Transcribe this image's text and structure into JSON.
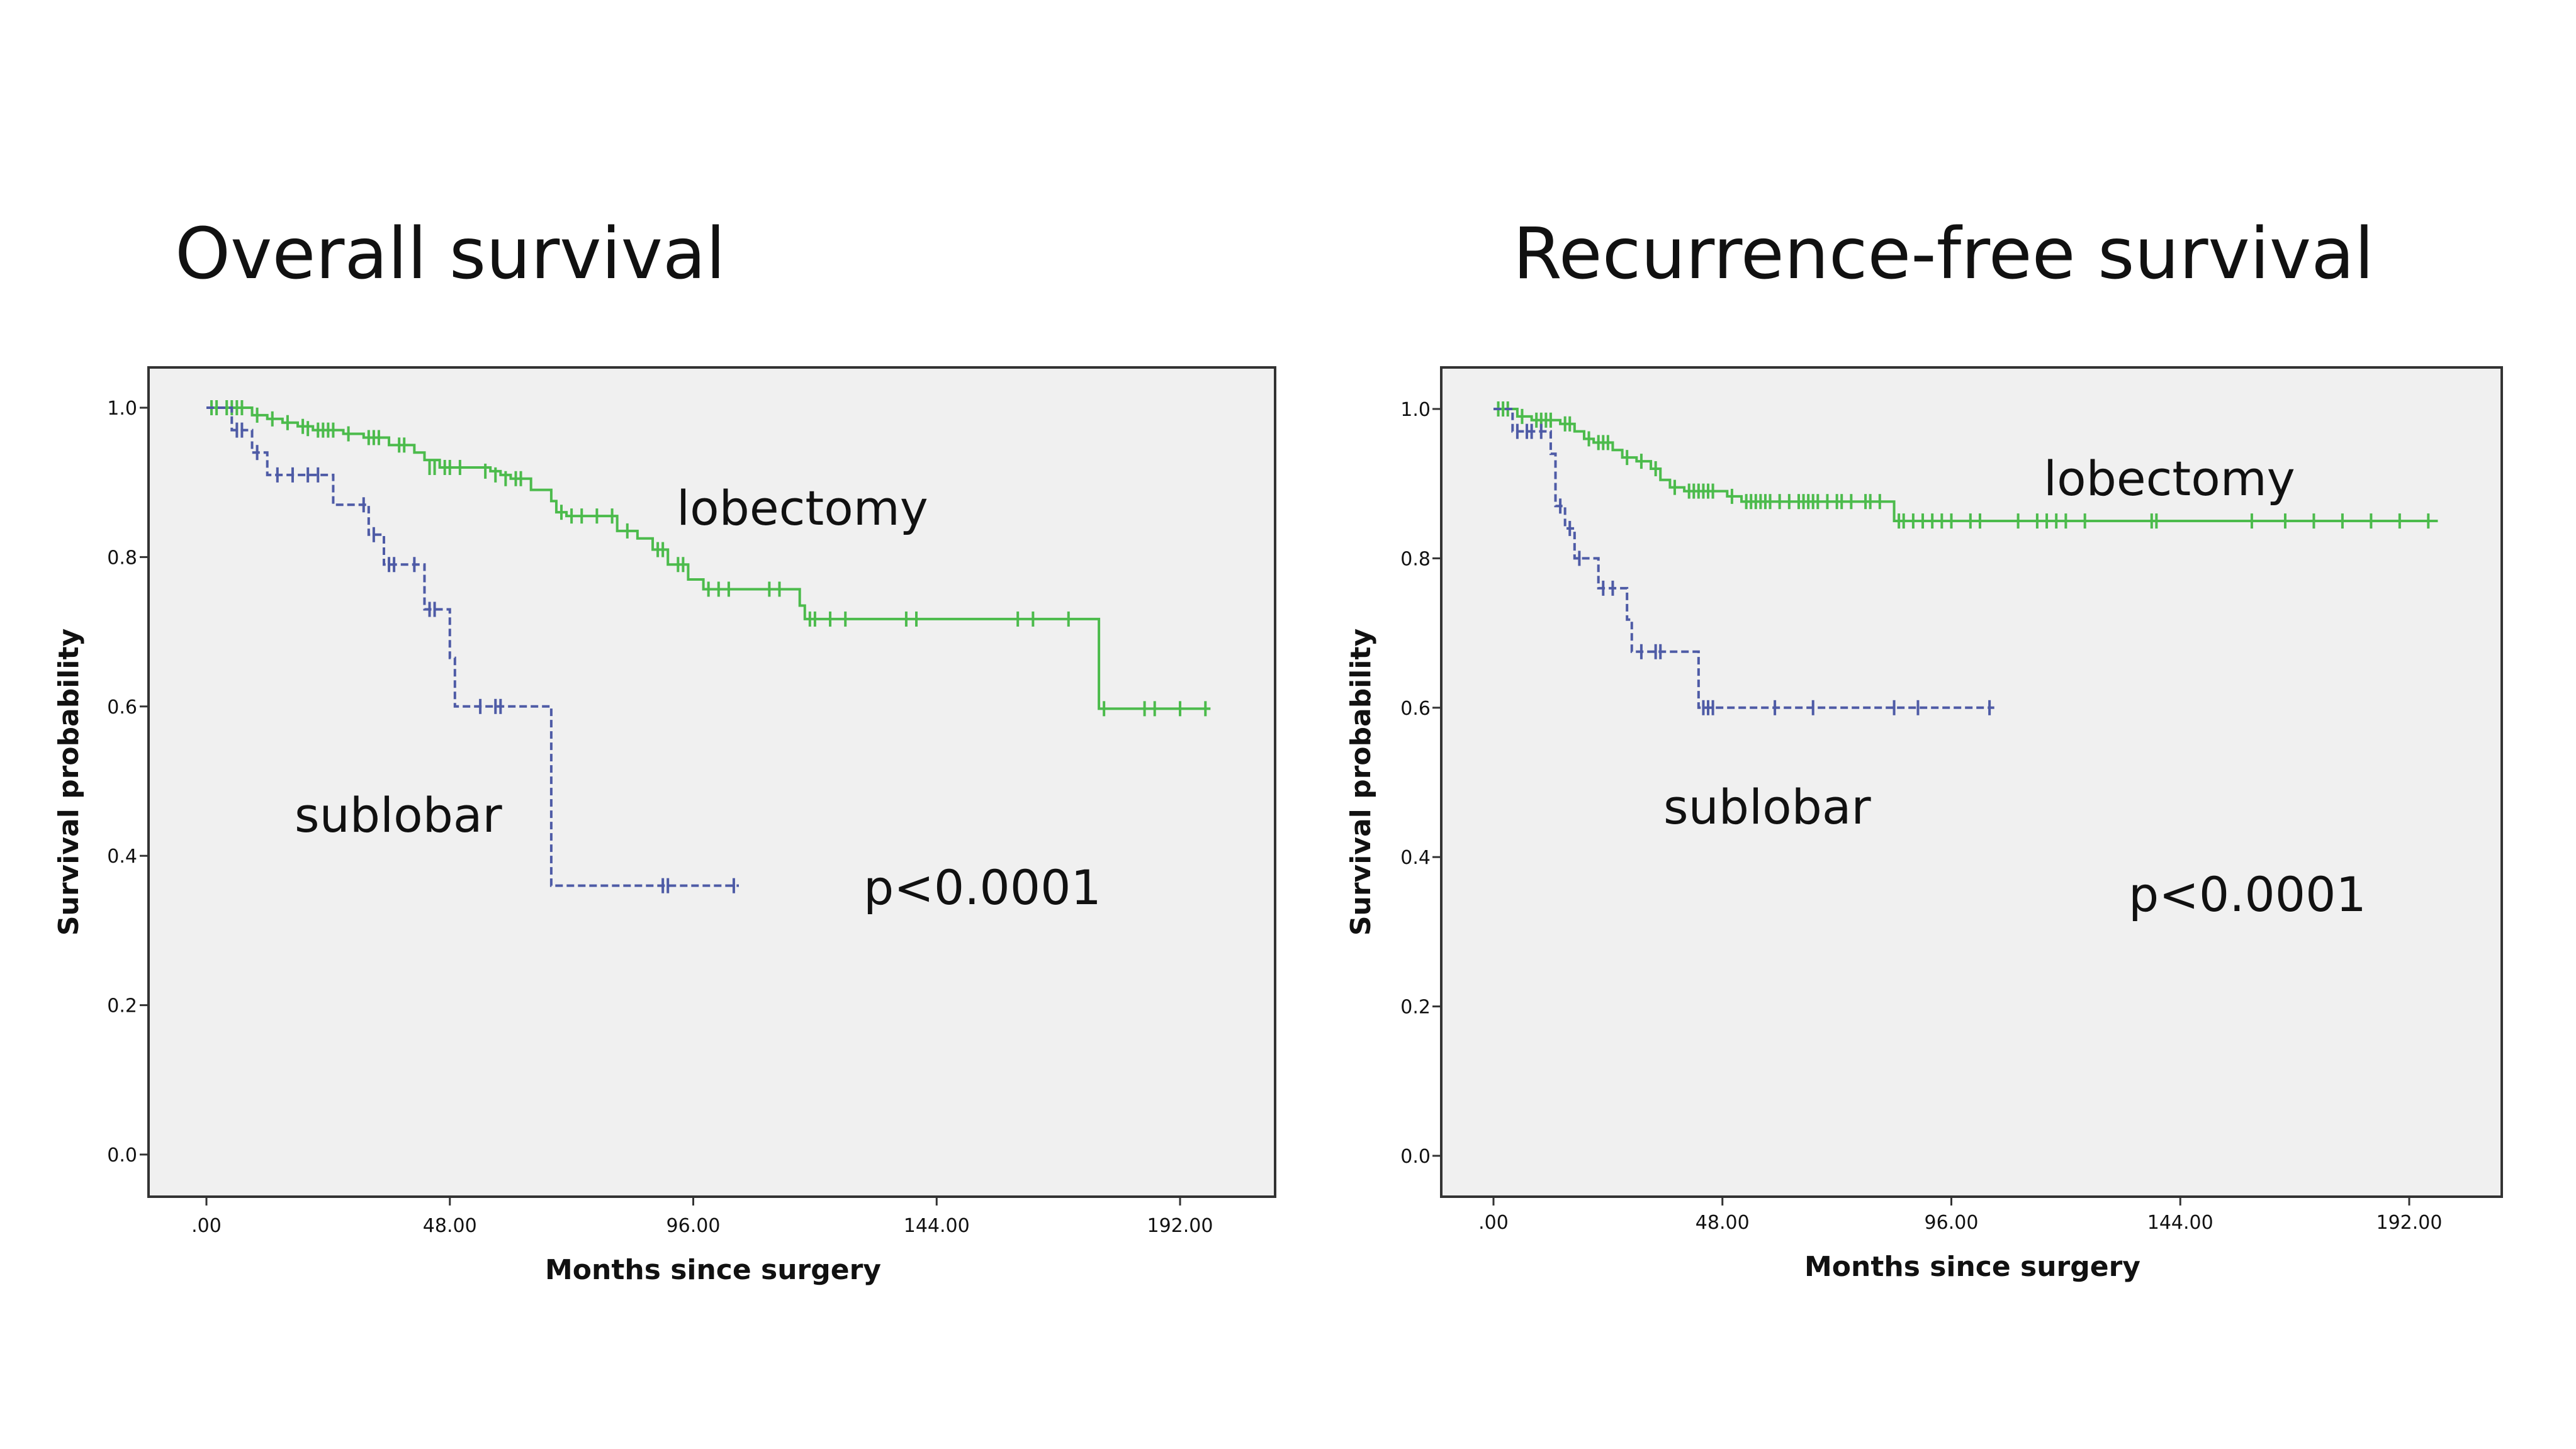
{
  "chart_data": [
    {
      "type": "line",
      "subtype": "kaplan-meier",
      "title": "Overall survival",
      "xlabel": "Months since surgery",
      "ylabel": "Survival probability",
      "xlim": [
        0,
        198
      ],
      "ylim": [
        0,
        1.0
      ],
      "xticks": [
        0,
        48,
        96,
        144,
        192
      ],
      "xtick_labels": [
        ".00",
        "48.00",
        "96.00",
        "144.00",
        "192.00"
      ],
      "yticks": [
        0,
        0.2,
        0.4,
        0.6,
        0.8,
        1.0
      ],
      "ytick_labels": [
        "0.0",
        "0.2",
        "0.4",
        "0.6",
        "0.8",
        "1.0"
      ],
      "background": "#f0f0f0",
      "grid": false,
      "pvalue": "p<0.0001",
      "series": [
        {
          "label": "lobectomy",
          "color": "#4cbb4c",
          "dashed": false,
          "steps": [
            [
              0,
              1.0
            ],
            [
              9,
              0.99
            ],
            [
              12,
              0.985
            ],
            [
              15,
              0.98
            ],
            [
              18,
              0.975
            ],
            [
              21,
              0.97
            ],
            [
              27,
              0.965
            ],
            [
              31,
              0.96
            ],
            [
              36,
              0.95
            ],
            [
              41,
              0.94
            ],
            [
              43,
              0.93
            ],
            [
              46,
              0.92
            ],
            [
              56,
              0.915
            ],
            [
              58,
              0.91
            ],
            [
              60,
              0.905
            ],
            [
              64,
              0.89
            ],
            [
              68,
              0.875
            ],
            [
              69,
              0.86
            ],
            [
              71,
              0.855
            ],
            [
              81,
              0.835
            ],
            [
              85,
              0.825
            ],
            [
              88,
              0.81
            ],
            [
              91,
              0.79
            ],
            [
              95,
              0.77
            ],
            [
              98,
              0.757
            ],
            [
              117,
              0.735
            ],
            [
              118,
              0.717
            ],
            [
              176,
              0.597
            ],
            [
              198,
              0.597
            ]
          ],
          "censored": [
            [
              1,
              1.0
            ],
            [
              2,
              1.0
            ],
            [
              4,
              1.0
            ],
            [
              5,
              1.0
            ],
            [
              6,
              1.0
            ],
            [
              7,
              1.0
            ],
            [
              10,
              0.99
            ],
            [
              13,
              0.985
            ],
            [
              16,
              0.98
            ],
            [
              19,
              0.975
            ],
            [
              20,
              0.972
            ],
            [
              22,
              0.97
            ],
            [
              23,
              0.97
            ],
            [
              24,
              0.97
            ],
            [
              25,
              0.97
            ],
            [
              28,
              0.965
            ],
            [
              32,
              0.96
            ],
            [
              33,
              0.96
            ],
            [
              34,
              0.96
            ],
            [
              38,
              0.95
            ],
            [
              39,
              0.95
            ],
            [
              44,
              0.92
            ],
            [
              45,
              0.92
            ],
            [
              47,
              0.92
            ],
            [
              48,
              0.92
            ],
            [
              50,
              0.92
            ],
            [
              55,
              0.915
            ],
            [
              57,
              0.91
            ],
            [
              59,
              0.905
            ],
            [
              61,
              0.905
            ],
            [
              62,
              0.905
            ],
            [
              70,
              0.86
            ],
            [
              72,
              0.855
            ],
            [
              74,
              0.855
            ],
            [
              77,
              0.855
            ],
            [
              80,
              0.855
            ],
            [
              83,
              0.835
            ],
            [
              89,
              0.81
            ],
            [
              90,
              0.81
            ],
            [
              93,
              0.79
            ],
            [
              94,
              0.79
            ],
            [
              99,
              0.757
            ],
            [
              101,
              0.757
            ],
            [
              103,
              0.757
            ],
            [
              111,
              0.757
            ],
            [
              113,
              0.757
            ],
            [
              119,
              0.717
            ],
            [
              120,
              0.717
            ],
            [
              123,
              0.717
            ],
            [
              126,
              0.717
            ],
            [
              138,
              0.717
            ],
            [
              140,
              0.717
            ],
            [
              160,
              0.717
            ],
            [
              163,
              0.717
            ],
            [
              170,
              0.717
            ],
            [
              177,
              0.597
            ],
            [
              185,
              0.597
            ],
            [
              187,
              0.597
            ],
            [
              192,
              0.597
            ],
            [
              197,
              0.597
            ]
          ]
        },
        {
          "label": "sublobar",
          "color": "#4e5ba6",
          "dashed": true,
          "steps": [
            [
              0,
              1.0
            ],
            [
              5,
              0.97
            ],
            [
              9,
              0.94
            ],
            [
              12,
              0.91
            ],
            [
              25,
              0.87
            ],
            [
              32,
              0.83
            ],
            [
              35,
              0.79
            ],
            [
              43,
              0.73
            ],
            [
              48,
              0.665
            ],
            [
              49,
              0.6
            ],
            [
              68,
              0.36
            ],
            [
              105,
              0.36
            ]
          ],
          "censored": [
            [
              6,
              0.97
            ],
            [
              7,
              0.97
            ],
            [
              10,
              0.94
            ],
            [
              14,
              0.91
            ],
            [
              17,
              0.91
            ],
            [
              20,
              0.91
            ],
            [
              22,
              0.91
            ],
            [
              31,
              0.87
            ],
            [
              33,
              0.83
            ],
            [
              36,
              0.79
            ],
            [
              37,
              0.79
            ],
            [
              41,
              0.79
            ],
            [
              44,
              0.73
            ],
            [
              45,
              0.73
            ],
            [
              54,
              0.6
            ],
            [
              57,
              0.6
            ],
            [
              58,
              0.6
            ],
            [
              90,
              0.36
            ],
            [
              91,
              0.36
            ],
            [
              104,
              0.36
            ]
          ]
        }
      ]
    },
    {
      "type": "line",
      "subtype": "kaplan-meier",
      "title": "Recurrence-free survival",
      "xlabel": "Months since surgery",
      "ylabel": "Survival probability",
      "xlim": [
        0,
        198
      ],
      "ylim": [
        0,
        1.0
      ],
      "xticks": [
        0,
        48,
        96,
        144,
        192
      ],
      "xtick_labels": [
        ".00",
        "48.00",
        "96.00",
        "144.00",
        "192.00"
      ],
      "yticks": [
        0,
        0.2,
        0.4,
        0.6,
        0.8,
        1.0
      ],
      "ytick_labels": [
        "0.0",
        "0.2",
        "0.4",
        "0.6",
        "0.8",
        "1.0"
      ],
      "background": "#f0f0f0",
      "grid": false,
      "pvalue": "p<0.0001",
      "series": [
        {
          "label": "lobectomy",
          "color": "#4cbb4c",
          "dashed": false,
          "steps": [
            [
              0,
              1.0
            ],
            [
              5,
              0.99
            ],
            [
              8,
              0.985
            ],
            [
              14,
              0.98
            ],
            [
              17,
              0.97
            ],
            [
              19,
              0.96
            ],
            [
              21,
              0.955
            ],
            [
              25,
              0.945
            ],
            [
              27,
              0.935
            ],
            [
              30,
              0.93
            ],
            [
              33,
              0.92
            ],
            [
              35,
              0.905
            ],
            [
              37,
              0.895
            ],
            [
              40,
              0.89
            ],
            [
              49,
              0.883
            ],
            [
              52,
              0.876
            ],
            [
              84,
              0.85
            ],
            [
              198,
              0.85
            ]
          ],
          "censored": [
            [
              1,
              1.0
            ],
            [
              2,
              1.0
            ],
            [
              3,
              1.0
            ],
            [
              6,
              0.99
            ],
            [
              9,
              0.985
            ],
            [
              10,
              0.985
            ],
            [
              11,
              0.985
            ],
            [
              12,
              0.985
            ],
            [
              15,
              0.98
            ],
            [
              16,
              0.98
            ],
            [
              20,
              0.96
            ],
            [
              22,
              0.955
            ],
            [
              23,
              0.955
            ],
            [
              24,
              0.955
            ],
            [
              28,
              0.935
            ],
            [
              31,
              0.93
            ],
            [
              34,
              0.92
            ],
            [
              38,
              0.895
            ],
            [
              41,
              0.89
            ],
            [
              42,
              0.89
            ],
            [
              43,
              0.89
            ],
            [
              44,
              0.89
            ],
            [
              45,
              0.89
            ],
            [
              46,
              0.89
            ],
            [
              50,
              0.883
            ],
            [
              53,
              0.876
            ],
            [
              54,
              0.876
            ],
            [
              55,
              0.876
            ],
            [
              56,
              0.876
            ],
            [
              57,
              0.876
            ],
            [
              58,
              0.876
            ],
            [
              60,
              0.876
            ],
            [
              62,
              0.876
            ],
            [
              64,
              0.876
            ],
            [
              65,
              0.876
            ],
            [
              66,
              0.876
            ],
            [
              67,
              0.876
            ],
            [
              68,
              0.876
            ],
            [
              70,
              0.876
            ],
            [
              72,
              0.876
            ],
            [
              73,
              0.876
            ],
            [
              75,
              0.876
            ],
            [
              78,
              0.876
            ],
            [
              79,
              0.876
            ],
            [
              81,
              0.876
            ],
            [
              85,
              0.85
            ],
            [
              86,
              0.85
            ],
            [
              88,
              0.85
            ],
            [
              90,
              0.85
            ],
            [
              92,
              0.85
            ],
            [
              94,
              0.85
            ],
            [
              96,
              0.85
            ],
            [
              100,
              0.85
            ],
            [
              102,
              0.85
            ],
            [
              110,
              0.85
            ],
            [
              114,
              0.85
            ],
            [
              116,
              0.85
            ],
            [
              118,
              0.85
            ],
            [
              120,
              0.85
            ],
            [
              124,
              0.85
            ],
            [
              138,
              0.85
            ],
            [
              139,
              0.85
            ],
            [
              159,
              0.85
            ],
            [
              166,
              0.85
            ],
            [
              172,
              0.85
            ],
            [
              178,
              0.85
            ],
            [
              184,
              0.85
            ],
            [
              190,
              0.85
            ],
            [
              196,
              0.85
            ]
          ]
        },
        {
          "label": "sublobar",
          "color": "#4e5ba6",
          "dashed": true,
          "steps": [
            [
              0,
              1.0
            ],
            [
              4,
              0.97
            ],
            [
              12,
              0.94
            ],
            [
              13,
              0.87
            ],
            [
              15,
              0.84
            ],
            [
              17,
              0.8
            ],
            [
              22,
              0.76
            ],
            [
              28,
              0.718
            ],
            [
              29,
              0.675
            ],
            [
              43,
              0.6
            ],
            [
              105,
              0.6
            ]
          ],
          "censored": [
            [
              5,
              0.97
            ],
            [
              7,
              0.97
            ],
            [
              8,
              0.97
            ],
            [
              10,
              0.97
            ],
            [
              14,
              0.87
            ],
            [
              16,
              0.84
            ],
            [
              18,
              0.8
            ],
            [
              23,
              0.76
            ],
            [
              25,
              0.76
            ],
            [
              31,
              0.675
            ],
            [
              34,
              0.675
            ],
            [
              35,
              0.675
            ],
            [
              44,
              0.6
            ],
            [
              45,
              0.6
            ],
            [
              46,
              0.6
            ],
            [
              59,
              0.6
            ],
            [
              67,
              0.6
            ],
            [
              84,
              0.6
            ],
            [
              89,
              0.6
            ],
            [
              104,
              0.6
            ]
          ]
        }
      ]
    }
  ]
}
